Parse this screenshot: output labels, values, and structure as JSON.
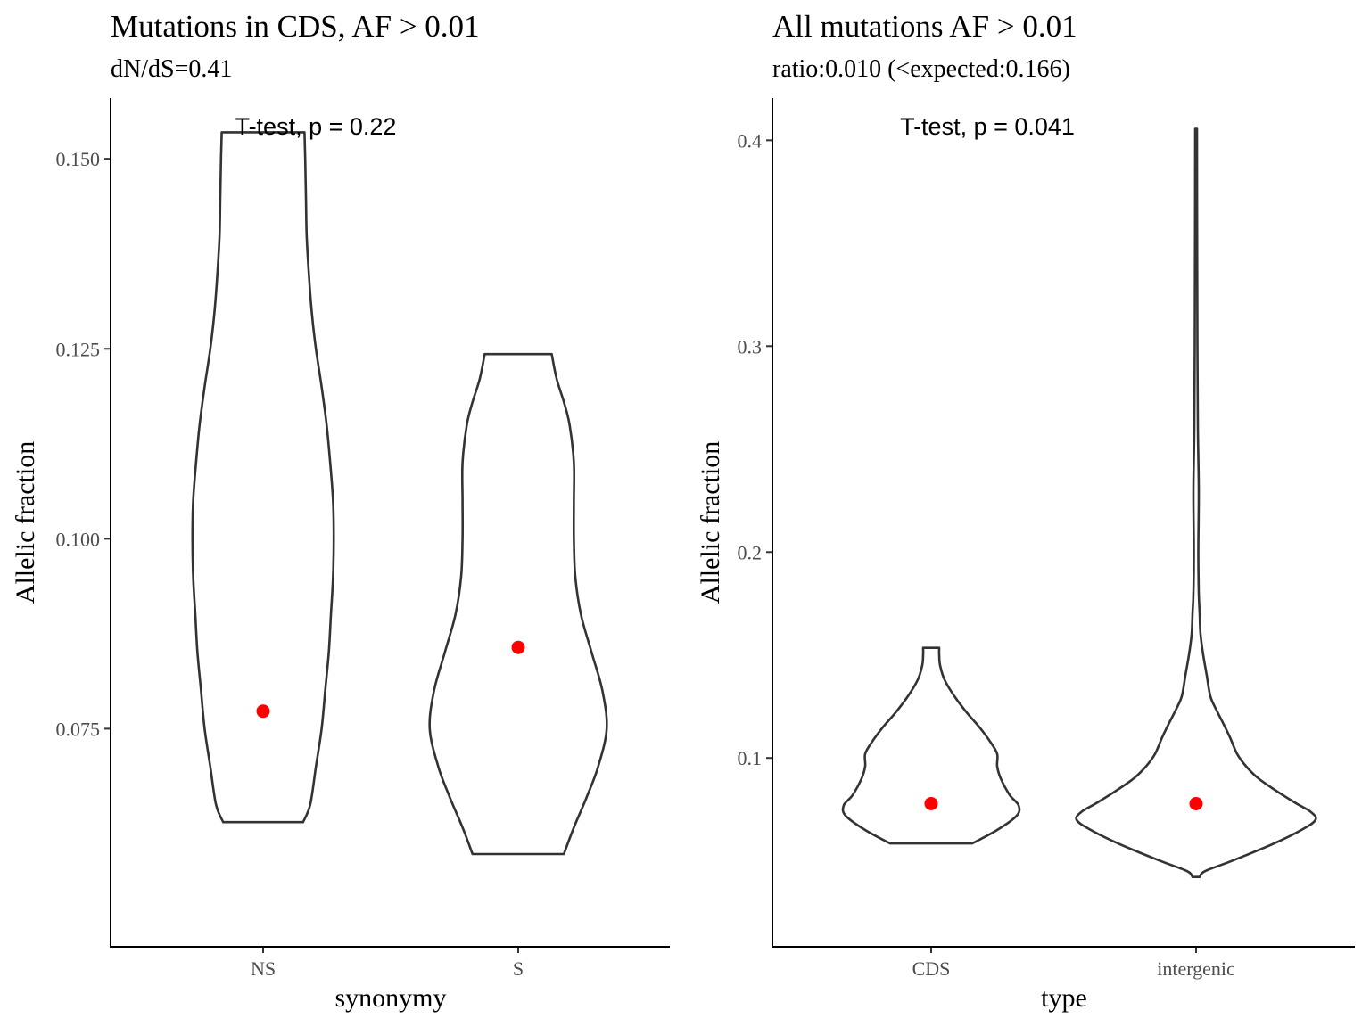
{
  "chart_data": [
    {
      "type": "violin",
      "title": "Mutations in CDS, AF > 0.01",
      "subtitle": "dN/dS=0.41",
      "xlabel": "synonymy",
      "ylabel": "Allelic fraction",
      "categories": [
        "NS",
        "S"
      ],
      "ylim": [
        0.0463,
        0.158
      ],
      "yticks": [
        0.075,
        0.1,
        0.125,
        0.15
      ],
      "ytick_labels": [
        "0.075",
        "0.100",
        "0.125",
        "0.150"
      ],
      "annotation": "T-test, p = 0.22",
      "mean_marker_color": "#ff0000",
      "violins": [
        {
          "category": "NS",
          "min": 0.0627,
          "max": 0.1535,
          "mean": 0.0773,
          "profile": [
            [
              0.0627,
              0.056
            ],
            [
              0.065,
              0.066
            ],
            [
              0.07,
              0.074
            ],
            [
              0.075,
              0.082
            ],
            [
              0.08,
              0.087
            ],
            [
              0.085,
              0.092
            ],
            [
              0.09,
              0.095
            ],
            [
              0.095,
              0.098
            ],
            [
              0.1,
              0.099
            ],
            [
              0.105,
              0.098
            ],
            [
              0.11,
              0.094
            ],
            [
              0.115,
              0.089
            ],
            [
              0.12,
              0.082
            ],
            [
              0.125,
              0.074
            ],
            [
              0.13,
              0.068
            ],
            [
              0.135,
              0.064
            ],
            [
              0.14,
              0.061
            ],
            [
              0.145,
              0.06
            ],
            [
              0.15,
              0.059
            ],
            [
              0.1535,
              0.058
            ]
          ]
        },
        {
          "category": "S",
          "min": 0.0585,
          "max": 0.1243,
          "mean": 0.0857,
          "profile": [
            [
              0.0585,
              0.064
            ],
            [
              0.062,
              0.078
            ],
            [
              0.066,
              0.096
            ],
            [
              0.07,
              0.112
            ],
            [
              0.075,
              0.124
            ],
            [
              0.08,
              0.118
            ],
            [
              0.085,
              0.103
            ],
            [
              0.09,
              0.088
            ],
            [
              0.095,
              0.08
            ],
            [
              0.1,
              0.078
            ],
            [
              0.105,
              0.078
            ],
            [
              0.11,
              0.078
            ],
            [
              0.115,
              0.072
            ],
            [
              0.118,
              0.064
            ],
            [
              0.121,
              0.054
            ],
            [
              0.1243,
              0.047
            ]
          ]
        }
      ]
    },
    {
      "type": "violin",
      "title": "All mutations AF > 0.01",
      "subtitle": "ratio:0.010 (<expected:0.166)",
      "xlabel": "type",
      "ylabel": "Allelic fraction",
      "categories": [
        "CDS",
        "intergenic"
      ],
      "ylim": [
        0.0083,
        0.4205
      ],
      "yticks": [
        0.1,
        0.2,
        0.3,
        0.4
      ],
      "ytick_labels": [
        "0.1",
        "0.2",
        "0.3",
        "0.4"
      ],
      "annotation": "T-test, p = 0.041",
      "mean_marker_color": "#ff0000",
      "violins": [
        {
          "category": "CDS",
          "min": 0.0585,
          "max": 0.1535,
          "mean": 0.0778,
          "profile": [
            [
              0.0585,
              0.046
            ],
            [
              0.065,
              0.074
            ],
            [
              0.072,
              0.096
            ],
            [
              0.077,
              0.098
            ],
            [
              0.082,
              0.088
            ],
            [
              0.09,
              0.078
            ],
            [
              0.096,
              0.074
            ],
            [
              0.102,
              0.074
            ],
            [
              0.108,
              0.066
            ],
            [
              0.115,
              0.054
            ],
            [
              0.122,
              0.04
            ],
            [
              0.13,
              0.026
            ],
            [
              0.138,
              0.015
            ],
            [
              0.145,
              0.01
            ],
            [
              0.15,
              0.009
            ],
            [
              0.1535,
              0.009
            ]
          ]
        },
        {
          "category": "intergenic",
          "min": 0.0422,
          "max": 0.4055,
          "mean": 0.0778,
          "profile": [
            [
              0.0422,
              0.004
            ],
            [
              0.045,
              0.01
            ],
            [
              0.05,
              0.04
            ],
            [
              0.058,
              0.085
            ],
            [
              0.065,
              0.118
            ],
            [
              0.07,
              0.134
            ],
            [
              0.074,
              0.128
            ],
            [
              0.078,
              0.112
            ],
            [
              0.084,
              0.09
            ],
            [
              0.09,
              0.07
            ],
            [
              0.096,
              0.056
            ],
            [
              0.102,
              0.046
            ],
            [
              0.11,
              0.038
            ],
            [
              0.118,
              0.029
            ],
            [
              0.124,
              0.022
            ],
            [
              0.13,
              0.016
            ],
            [
              0.14,
              0.012
            ],
            [
              0.15,
              0.008
            ],
            [
              0.16,
              0.005
            ],
            [
              0.17,
              0.004
            ],
            [
              0.18,
              0.003
            ],
            [
              0.2,
              0.0025
            ],
            [
              0.23,
              0.003
            ],
            [
              0.26,
              0.002
            ],
            [
              0.3,
              0.0015
            ],
            [
              0.35,
              0.0012
            ],
            [
              0.4055,
              0.001
            ]
          ]
        }
      ]
    }
  ]
}
